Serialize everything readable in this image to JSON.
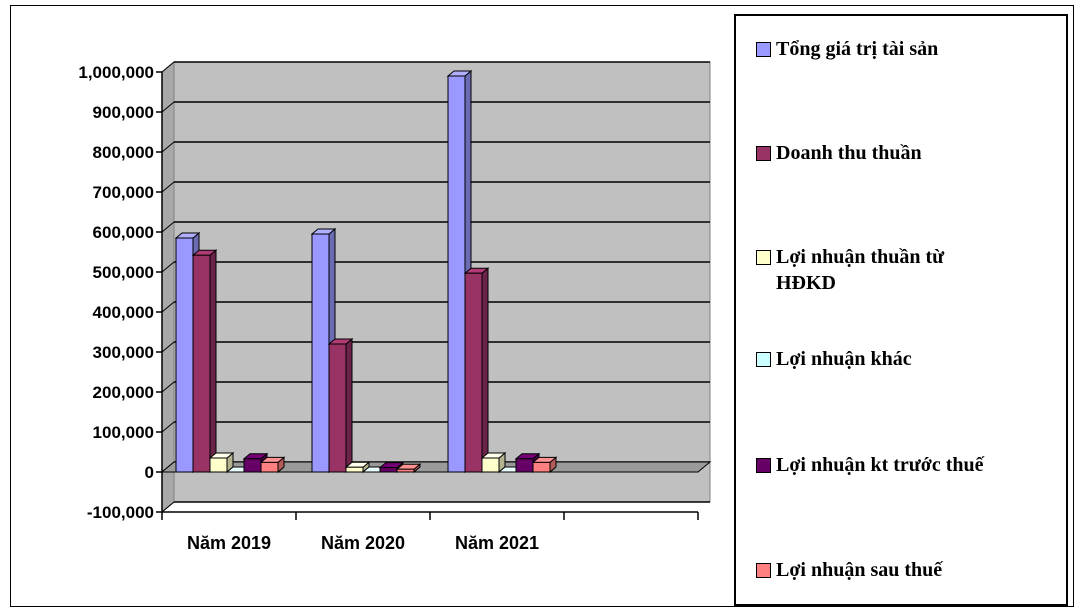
{
  "chart_data": {
    "type": "bar",
    "categories": [
      "Năm 2019",
      "Năm 2020",
      "Năm 2021"
    ],
    "series": [
      {
        "name": "Tổng giá trị tài sản",
        "color": "#9999ff",
        "values": [
          585000,
          595000,
          990000
        ]
      },
      {
        "name": "Doanh thu thuần",
        "color": "#993366",
        "values": [
          542000,
          320000,
          497000
        ]
      },
      {
        "name": "Lợi nhuận thuần từ HĐKD",
        "color": "#ffffcc",
        "values": [
          35000,
          12000,
          35000
        ]
      },
      {
        "name": "Lợi nhuận khác",
        "color": "#ccffff",
        "values": [
          0,
          0,
          0
        ]
      },
      {
        "name": "Lợi nhuận kt trước thuế",
        "color": "#660066",
        "values": [
          33000,
          11000,
          33000
        ]
      },
      {
        "name": "Lợi nhuận sau thuế",
        "color": "#ff8080",
        "values": [
          24000,
          7000,
          24000
        ]
      }
    ],
    "ylim": [
      -100000,
      1000000
    ],
    "yticks": [
      -100000,
      0,
      100000,
      200000,
      300000,
      400000,
      500000,
      600000,
      700000,
      800000,
      900000,
      1000000
    ],
    "ytick_labels": [
      "-100,000",
      "0",
      "100,000",
      "200,000",
      "300,000",
      "400,000",
      "500,000",
      "600,000",
      "700,000",
      "800,000",
      "900,000",
      "1,000,000"
    ],
    "grid": true,
    "legend_position": "right",
    "plot_background": "#c0c0c0"
  }
}
